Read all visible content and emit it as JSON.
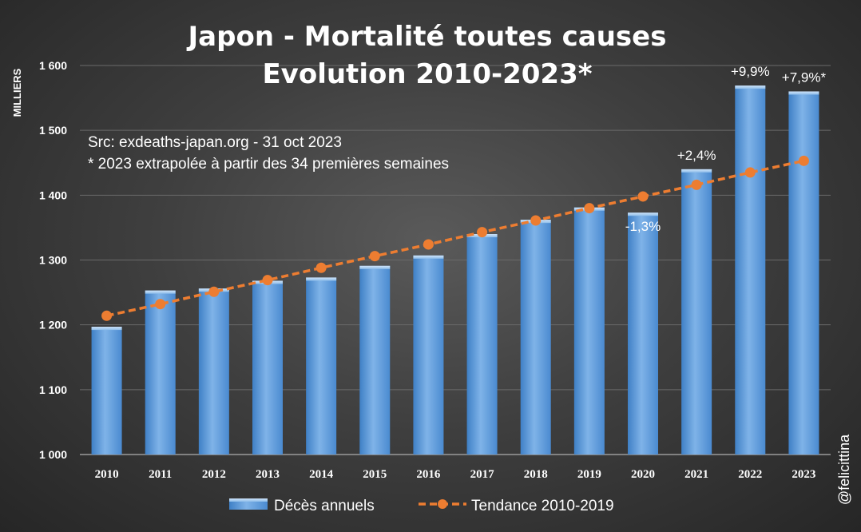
{
  "chart_data": {
    "type": "bar",
    "title_line1": "Japon - Mortalité toutes causes",
    "title_line2": "Evolution 2010-2023*",
    "source_line1": "Src: exdeaths-japan.org - 31 oct 2023",
    "source_line2": "* 2023 extrapolée à partir des 34 premières semaines",
    "ylabel": "MILLIERS",
    "ylim": [
      1000,
      1600
    ],
    "yticks": [
      1000,
      1100,
      1200,
      1300,
      1400,
      1500,
      1600
    ],
    "ytick_labels": [
      "1 000",
      "1 100",
      "1 200",
      "1 300",
      "1 400",
      "1 500",
      "1 600"
    ],
    "categories": [
      "2010",
      "2011",
      "2012",
      "2013",
      "2014",
      "2015",
      "2016",
      "2017",
      "2018",
      "2019",
      "2020",
      "2021",
      "2022",
      "2023"
    ],
    "series": [
      {
        "name": "Décès annuels",
        "type": "bar",
        "color": "#5b9bd5",
        "values": [
          1197,
          1253,
          1256,
          1268,
          1273,
          1291,
          1307,
          1340,
          1362,
          1381,
          1373,
          1440,
          1569,
          1560
        ]
      },
      {
        "name": "Tendance 2010-2019",
        "type": "line",
        "color": "#ed7d31",
        "values": [
          1214,
          1232,
          1251,
          1269,
          1288,
          1306,
          1324,
          1343,
          1361,
          1380,
          1398,
          1416,
          1435,
          1453
        ]
      }
    ],
    "annotations": [
      {
        "category": "2020",
        "text": "-1,3%",
        "position": "below"
      },
      {
        "category": "2021",
        "text": "+2,4%",
        "position": "above"
      },
      {
        "category": "2022",
        "text": "+9,9%",
        "position": "above"
      },
      {
        "category": "2023",
        "text": "+7,9%*",
        "position": "above"
      }
    ],
    "grid": true,
    "legend": "bottom-center"
  },
  "credit": "@felicittina"
}
